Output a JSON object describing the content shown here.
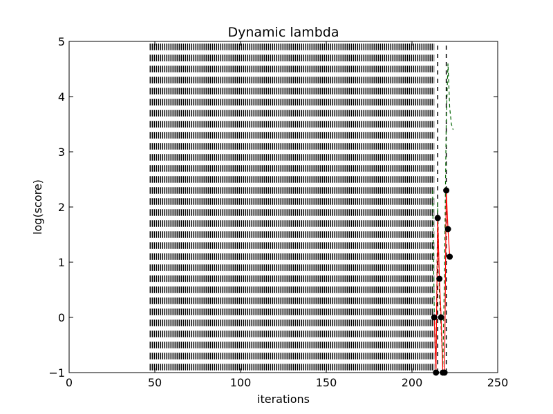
{
  "chart_data": {
    "type": "line",
    "title": "Dynamic lambda",
    "xlabel": "iterations",
    "ylabel": "log(score)",
    "xlim": [
      0,
      250
    ],
    "ylim": [
      -1,
      5
    ],
    "xticks": [
      "0",
      "50",
      "100",
      "150",
      "200",
      "250"
    ],
    "yticks": [
      "−1",
      "0",
      "1",
      "2",
      "3",
      "4",
      "5"
    ],
    "grid": false,
    "legend": "none",
    "colors": {
      "score_line": "#ff0000",
      "score_marker": "#000000",
      "lambda_dashed": "#006400",
      "vertical_dashes": "#000000"
    },
    "dashed_band": {
      "x_range": [
        47,
        213
      ],
      "y_levels": [
        4.9,
        4.7,
        4.5,
        4.3,
        4.1,
        3.9,
        3.7,
        3.5,
        3.3,
        3.1,
        2.9,
        2.7,
        2.5,
        2.3,
        2.1,
        1.9,
        1.7,
        1.5,
        1.3,
        1.1,
        0.9,
        0.7,
        0.5,
        0.3,
        0.1,
        -0.1,
        -0.3,
        -0.5,
        -0.7,
        -0.9
      ],
      "segment_height": 0.12
    },
    "vertical_dashed_lines": [
      {
        "x": 215,
        "y": [
          -1,
          5
        ]
      },
      {
        "x": 220,
        "y": [
          -1,
          5
        ]
      }
    ],
    "series": [
      {
        "x": [
          213,
          214,
          215,
          216,
          217,
          218,
          219,
          220,
          221,
          222
        ],
        "y": [
          0,
          -1,
          1.8,
          0.7,
          0,
          -1,
          -1,
          2.3,
          1.6,
          1.1
        ],
        "style": "red-line-black-dots"
      },
      {
        "x": [
          212,
          213,
          214,
          215,
          216,
          217,
          218,
          219,
          220,
          221,
          222,
          223,
          224
        ],
        "y": [
          2.3,
          0.1,
          -1,
          2.1,
          0.4,
          -0.2,
          -0.9,
          0.9,
          3.6,
          4.6,
          3.8,
          3.5,
          3.4
        ],
        "style": "green-dashed"
      }
    ]
  }
}
